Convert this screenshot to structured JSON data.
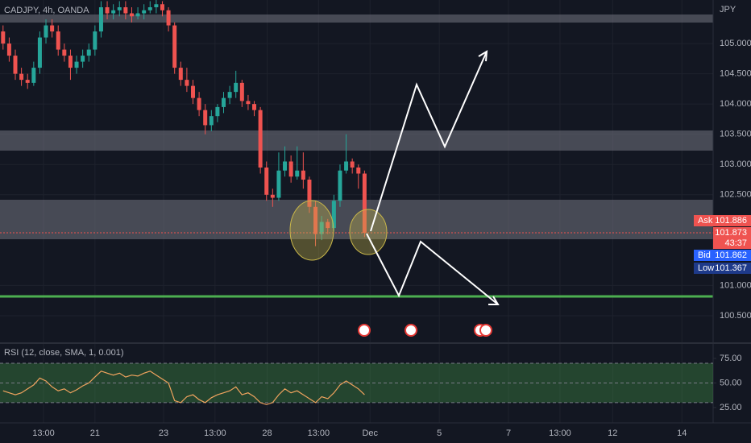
{
  "header": {
    "symbol": "CADJPY, 4h, OANDA",
    "currency": "JPY"
  },
  "price_labels": {
    "ask_label": "Ask",
    "ask": "101.886",
    "last": "101.873",
    "countdown": "43:37",
    "bid_label": "Bid",
    "bid": "101.862",
    "low_label": "Low",
    "low": "101.367"
  },
  "chart_data": [
    {
      "type": "candlestick",
      "ylim": [
        100.06,
        105.72
      ],
      "xlim": [
        0,
        116.4
      ],
      "grid": true,
      "up_color": "#26a69a",
      "down_color": "#ef5350",
      "yticks": [
        {
          "value": 105,
          "label": "105.000"
        },
        {
          "value": 104.5,
          "label": "104.500"
        },
        {
          "value": 104,
          "label": "104.000"
        },
        {
          "value": 103.5,
          "label": "103.500"
        },
        {
          "value": 103,
          "label": "103.000"
        },
        {
          "value": 102.5,
          "label": "102.500"
        },
        {
          "value": 101,
          "label": "101.000"
        },
        {
          "value": 100.5,
          "label": "100.500"
        }
      ],
      "xticks": [
        {
          "value": 7.1,
          "label": "13:00"
        },
        {
          "value": 15.5,
          "label": "21"
        },
        {
          "value": 26.7,
          "label": "23"
        },
        {
          "value": 35.1,
          "label": "13:00"
        },
        {
          "value": 43.6,
          "label": "28"
        },
        {
          "value": 52.0,
          "label": "13:00"
        },
        {
          "value": 60.4,
          "label": "Dec"
        },
        {
          "value": 71.7,
          "label": "5"
        },
        {
          "value": 83.0,
          "label": "7"
        },
        {
          "value": 91.4,
          "label": "13:00"
        },
        {
          "value": 100,
          "label": "12"
        },
        {
          "value": 111.3,
          "label": "14"
        }
      ],
      "ohlc": [
        [
          105.2,
          105.3,
          104.9,
          105.0
        ],
        [
          105.0,
          105.1,
          104.7,
          104.8
        ],
        [
          104.8,
          104.9,
          104.4,
          104.5
        ],
        [
          104.5,
          104.6,
          104.3,
          104.4
        ],
        [
          104.4,
          104.5,
          104.25,
          104.35
        ],
        [
          104.35,
          104.7,
          104.3,
          104.6
        ],
        [
          104.6,
          105.2,
          104.5,
          105.1
        ],
        [
          105.1,
          105.4,
          105.0,
          105.3
        ],
        [
          105.3,
          105.4,
          105.1,
          105.2
        ],
        [
          105.2,
          105.3,
          104.8,
          104.9
        ],
        [
          104.9,
          105.0,
          104.7,
          104.8
        ],
        [
          104.8,
          104.9,
          104.4,
          104.6
        ],
        [
          104.6,
          104.8,
          104.5,
          104.7
        ],
        [
          104.7,
          104.9,
          104.6,
          104.8
        ],
        [
          104.8,
          105.0,
          104.7,
          104.9
        ],
        [
          104.9,
          105.3,
          104.8,
          105.2
        ],
        [
          105.2,
          105.7,
          105.1,
          105.6
        ],
        [
          105.6,
          105.7,
          105.4,
          105.5
        ],
        [
          105.5,
          105.65,
          105.4,
          105.55
        ],
        [
          105.55,
          105.7,
          105.45,
          105.6
        ],
        [
          105.6,
          105.7,
          105.4,
          105.5
        ],
        [
          105.5,
          105.6,
          105.35,
          105.45
        ],
        [
          105.45,
          105.6,
          105.4,
          105.5
        ],
        [
          105.5,
          105.65,
          105.4,
          105.55
        ],
        [
          105.55,
          105.7,
          105.5,
          105.6
        ],
        [
          105.6,
          105.72,
          105.5,
          105.65
        ],
        [
          105.65,
          105.7,
          105.45,
          105.55
        ],
        [
          105.55,
          105.6,
          105.2,
          105.3
        ],
        [
          105.3,
          105.35,
          104.5,
          104.6
        ],
        [
          104.6,
          104.7,
          104.3,
          104.4
        ],
        [
          104.4,
          104.6,
          104.2,
          104.3
        ],
        [
          104.3,
          104.4,
          104.0,
          104.1
        ],
        [
          104.1,
          104.2,
          103.8,
          103.9
        ],
        [
          103.9,
          104.0,
          103.5,
          103.65
        ],
        [
          103.65,
          103.9,
          103.55,
          103.8
        ],
        [
          103.8,
          104.0,
          103.7,
          103.95
        ],
        [
          103.95,
          104.2,
          103.85,
          104.1
        ],
        [
          104.1,
          104.3,
          104.0,
          104.2
        ],
        [
          104.2,
          104.55,
          104.1,
          104.35
        ],
        [
          104.35,
          104.4,
          103.95,
          104.05
        ],
        [
          104.05,
          104.15,
          103.9,
          104.0
        ],
        [
          104.0,
          104.05,
          103.8,
          103.9
        ],
        [
          103.9,
          103.95,
          102.85,
          102.95
        ],
        [
          102.95,
          103.05,
          102.4,
          102.5
        ],
        [
          102.5,
          102.6,
          102.3,
          102.45
        ],
        [
          102.45,
          103.2,
          102.4,
          102.9
        ],
        [
          102.9,
          103.3,
          102.8,
          103.05
        ],
        [
          103.05,
          103.15,
          102.7,
          102.8
        ],
        [
          102.8,
          103.3,
          102.75,
          102.9
        ],
        [
          102.9,
          103.2,
          102.6,
          102.75
        ],
        [
          102.75,
          102.8,
          102.2,
          102.3
        ],
        [
          102.3,
          102.4,
          101.65,
          101.85
        ],
        [
          101.85,
          102.15,
          101.75,
          102.05
        ],
        [
          102.05,
          102.1,
          101.85,
          101.95
        ],
        [
          101.95,
          102.5,
          101.9,
          102.4
        ],
        [
          102.4,
          103.0,
          102.3,
          102.9
        ],
        [
          102.9,
          103.5,
          102.85,
          103.05
        ],
        [
          103.05,
          103.1,
          102.85,
          102.95
        ],
        [
          102.95,
          103.0,
          102.6,
          102.85
        ],
        [
          102.85,
          102.9,
          101.8,
          101.87
        ]
      ]
    },
    {
      "type": "line",
      "title": "RSI (12, close, SMA, 1, 0.001)",
      "color": "#f0a35e",
      "ylim": [
        9.4,
        88.9
      ],
      "levels": [
        70,
        50,
        30
      ],
      "yticks": [
        {
          "value": 75,
          "label": "75.00"
        },
        {
          "value": 50,
          "label": "50.00"
        },
        {
          "value": 25,
          "label": "25.00"
        }
      ],
      "values": [
        42,
        40,
        38,
        40,
        44,
        48,
        55,
        52,
        46,
        42,
        44,
        40,
        43,
        47,
        50,
        56,
        62,
        60,
        58,
        60,
        56,
        58,
        57,
        60,
        62,
        58,
        54,
        50,
        32,
        30,
        36,
        38,
        33,
        30,
        35,
        38,
        40,
        42,
        46,
        38,
        40,
        36,
        30,
        28,
        30,
        38,
        44,
        40,
        42,
        38,
        34,
        30,
        36,
        34,
        40,
        48,
        52,
        48,
        44,
        38
      ]
    }
  ]
}
